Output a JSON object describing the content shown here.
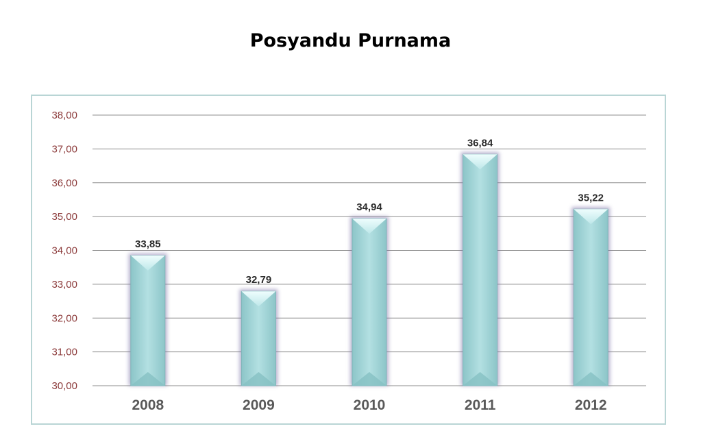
{
  "chart_data": {
    "type": "bar",
    "title": "Posyandu Purnama",
    "categories": [
      "2008",
      "2009",
      "2010",
      "2011",
      "2012"
    ],
    "values": [
      33.85,
      32.79,
      34.94,
      36.84,
      35.22
    ],
    "value_labels": [
      "33,85",
      "32,79",
      "34,94",
      "36,84",
      "35,22"
    ],
    "yticks": [
      "30,00",
      "31,00",
      "32,00",
      "33,00",
      "34,00",
      "35,00",
      "36,00",
      "37,00",
      "38,00"
    ],
    "ylim": [
      30,
      38
    ],
    "xlabel": "",
    "ylabel": "",
    "grid": true,
    "legend": "none",
    "colors": {
      "bar": "#9ed3d6",
      "bar_edge": "#7f74a8",
      "grid": "#8c8c8c",
      "ytick": "#8c3b3b",
      "xtick": "#595959"
    }
  }
}
